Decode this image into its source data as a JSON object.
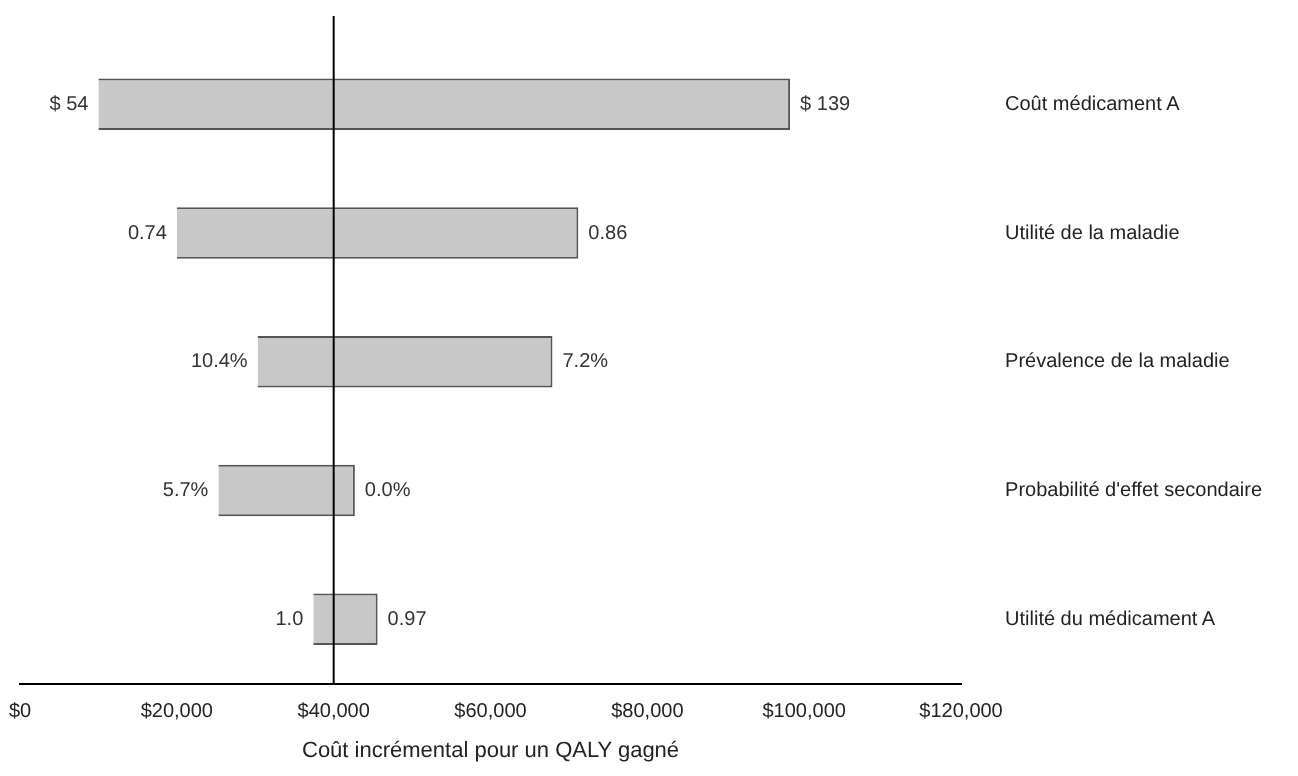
{
  "chart_data": {
    "type": "bar",
    "orientation": "horizontal",
    "xlabel": "Coût incrémental pour un QALY gagné",
    "categories": [
      "Coût médicament A",
      "Utilité de la maladie",
      "Prévalence de la maladie",
      "Probabilité d'effet secondaire",
      "Utilité du médicament A"
    ],
    "base": [
      10000,
      20000,
      30300,
      25300,
      37400
    ],
    "values": [
      88200,
      51200,
      37600,
      17400,
      8200
    ],
    "color": "#c8c8c8",
    "xlim": [
      0,
      120000
    ],
    "xticks": [
      {
        "value": 0,
        "label": "$0"
      },
      {
        "value": 20000,
        "label": "$20,000"
      },
      {
        "value": 40000,
        "label": "$40,000"
      },
      {
        "value": 60000,
        "label": "$60,000"
      },
      {
        "value": 80000,
        "label": "$80,000"
      },
      {
        "value": 100000,
        "label": "$100,000"
      },
      {
        "value": 120000,
        "label": "$120,000"
      }
    ],
    "ref_lines": [
      {
        "axis": "x",
        "value": 40000,
        "color": "#000000"
      }
    ],
    "annotations": [
      {
        "text": "$ 54",
        "x": 10000,
        "y": "Coût médicament A"
      },
      {
        "text": "$ 139",
        "x": 98200,
        "y": "Coût médicament A"
      },
      {
        "text": "0.74",
        "x": 20000,
        "y": "Utilité de la maladie"
      },
      {
        "text": "0.86",
        "x": 71200,
        "y": "Utilité de la maladie"
      },
      {
        "text": "10.4%",
        "x": 30300,
        "y": "Prévalence de la maladie"
      },
      {
        "text": "7.2%",
        "x": 67900,
        "y": "Prévalence de la maladie"
      },
      {
        "text": "5.7%",
        "x": 25300,
        "y": "Probabilité d'effet secondaire"
      },
      {
        "text": "0.0%",
        "x": 42700,
        "y": "Probabilité d'effet secondaire"
      },
      {
        "text": "1.0",
        "x": 37400,
        "y": "Utilité du médicament A"
      },
      {
        "text": "0.97",
        "x": 45600,
        "y": "Utilité du médicament A"
      }
    ],
    "grid": false,
    "legend": false
  }
}
